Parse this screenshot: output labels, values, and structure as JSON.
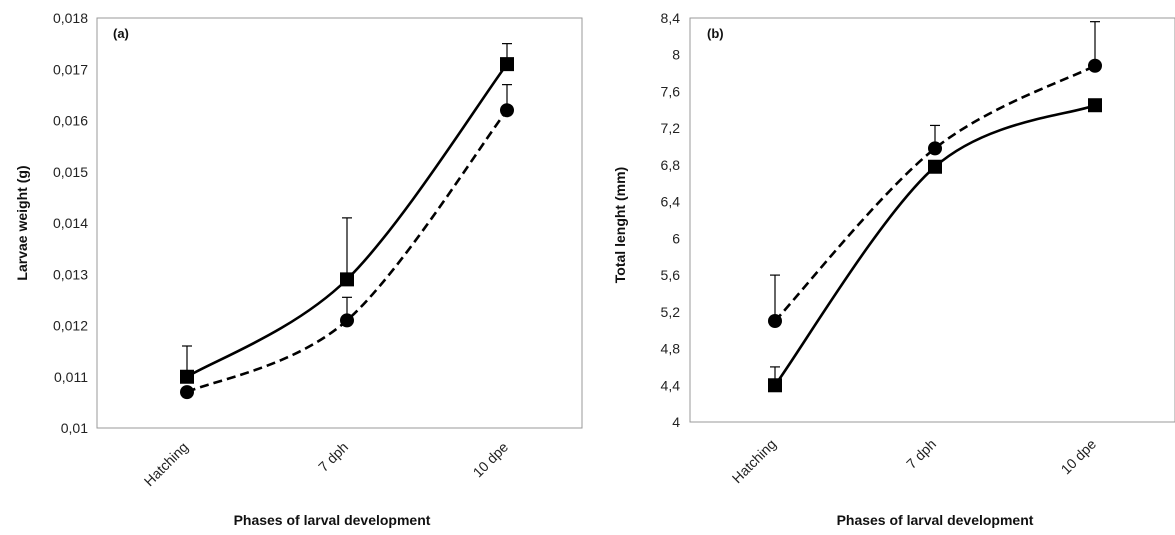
{
  "chart_data": [
    {
      "type": "line",
      "panel_label": "(a)",
      "categories": [
        "Hatching",
        "7 dph",
        "10 dpe"
      ],
      "xlabel": "Phases of larval development",
      "ylabel": "Larvae weight (g)",
      "ylim": [
        0.01,
        0.018
      ],
      "yticks": [
        "0,01",
        "0,011",
        "0,012",
        "0,013",
        "0,014",
        "0,015",
        "0,016",
        "0,017",
        "0,018"
      ],
      "grid": false,
      "series": [
        {
          "marker": "square",
          "line": "solid",
          "values": [
            0.011,
            0.0129,
            0.0171
          ],
          "errors": [
            0.0006,
            0.0012,
            0.0004
          ]
        },
        {
          "marker": "circle",
          "line": "dashed",
          "values": [
            0.0107,
            0.0121,
            0.0162
          ],
          "errors": [
            0,
            0.00045,
            0.0005
          ]
        }
      ]
    },
    {
      "type": "line",
      "panel_label": "(b)",
      "categories": [
        "Hatching",
        "7 dph",
        "10 dpe"
      ],
      "xlabel": "Phases of larval development",
      "ylabel": "Total lenght (mm)",
      "ylim": [
        4,
        8.4
      ],
      "yticks": [
        "4",
        "4,4",
        "4,8",
        "5,2",
        "5,6",
        "6",
        "6,4",
        "6,8",
        "7,2",
        "7,6",
        "8",
        "8,4"
      ],
      "grid": false,
      "series": [
        {
          "marker": "square",
          "line": "solid",
          "values": [
            4.4,
            6.78,
            7.45
          ],
          "errors": [
            0.2,
            0,
            0
          ]
        },
        {
          "marker": "circle",
          "line": "dashed",
          "values": [
            5.1,
            6.98,
            7.88
          ],
          "errors": [
            0.5,
            0.25,
            0.48
          ]
        }
      ]
    }
  ]
}
